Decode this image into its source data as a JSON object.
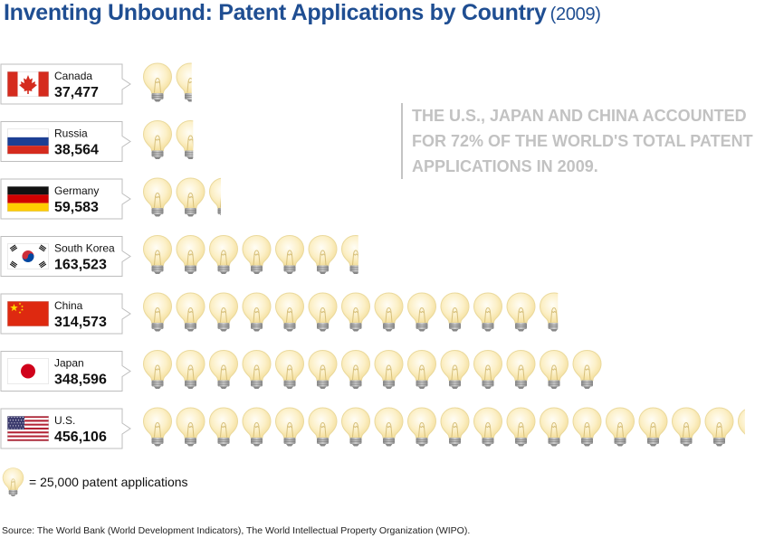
{
  "title": "Inventing Unbound: Patent Applications by Country",
  "subtitle": "(2009)",
  "callout": "The U.S., Japan and China accounted for 72% of the world's total patent applications in 2009.",
  "legend_label": "= 25,000 patent applications",
  "source": "Source: The World Bank (World Development Indicators), The World Intellectual Property Organization (WIPO).",
  "colors": {
    "title": "#1f4e92",
    "bulb": "#fbe9b3",
    "bulb_outline": "#e8d79a",
    "base": "#a9a9a9",
    "callout": "#c2c2c2"
  },
  "chart_data": {
    "type": "pictograph",
    "unit_value": 25000,
    "unit_icon": "lightbulb-icon",
    "categories": [
      "Canada",
      "Russia",
      "Germany",
      "South Korea",
      "China",
      "Japan",
      "U.S."
    ],
    "values": [
      37477,
      38564,
      59583,
      163523,
      314573,
      348596,
      456106
    ],
    "value_labels": [
      "37,477",
      "38,564",
      "59,583",
      "163,523",
      "314,573",
      "348,596",
      "456,106"
    ],
    "flags": [
      "canada",
      "russia",
      "germany",
      "south-korea",
      "china",
      "japan",
      "usa"
    ]
  }
}
